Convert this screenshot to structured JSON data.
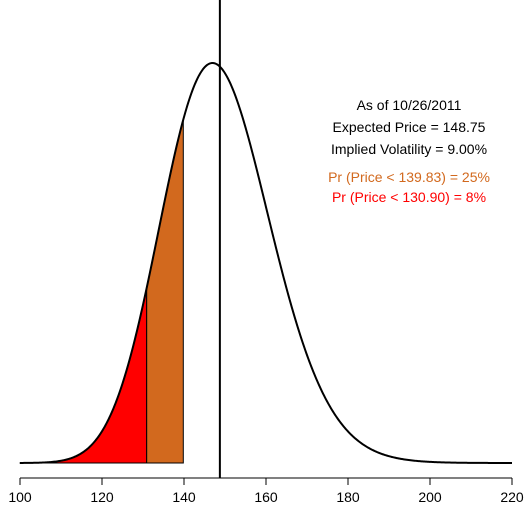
{
  "chart_data": {
    "type": "area",
    "title": "",
    "xlabel": "",
    "ylabel": "",
    "xlim": [
      100,
      220
    ],
    "x_ticks": [
      100,
      120,
      140,
      160,
      180,
      200,
      220
    ],
    "distribution": "lognormal",
    "expected_price": 148.75,
    "implied_volatility": 0.09,
    "mode_x": 147.5,
    "vertical_line_x": 148.75,
    "shaded_regions": [
      {
        "from": 100,
        "to": 130.9,
        "color": "#ff0000",
        "probability": 0.08
      },
      {
        "from": 130.9,
        "to": 139.83,
        "color": "#d2691e",
        "probability": 0.25
      }
    ],
    "annotations": [
      {
        "text": "As of 10/26/2011",
        "color": "#000000"
      },
      {
        "text": "Expected Price = 148.75",
        "color": "#000000"
      },
      {
        "text": "Implied Volatility = 9.00%",
        "color": "#000000"
      },
      {
        "text": "Pr (Price < 139.83) = 25%",
        "color": "#d2691e"
      },
      {
        "text": "Pr (Price < 130.90) = 8%",
        "color": "#ff0000"
      }
    ],
    "grid": false
  }
}
